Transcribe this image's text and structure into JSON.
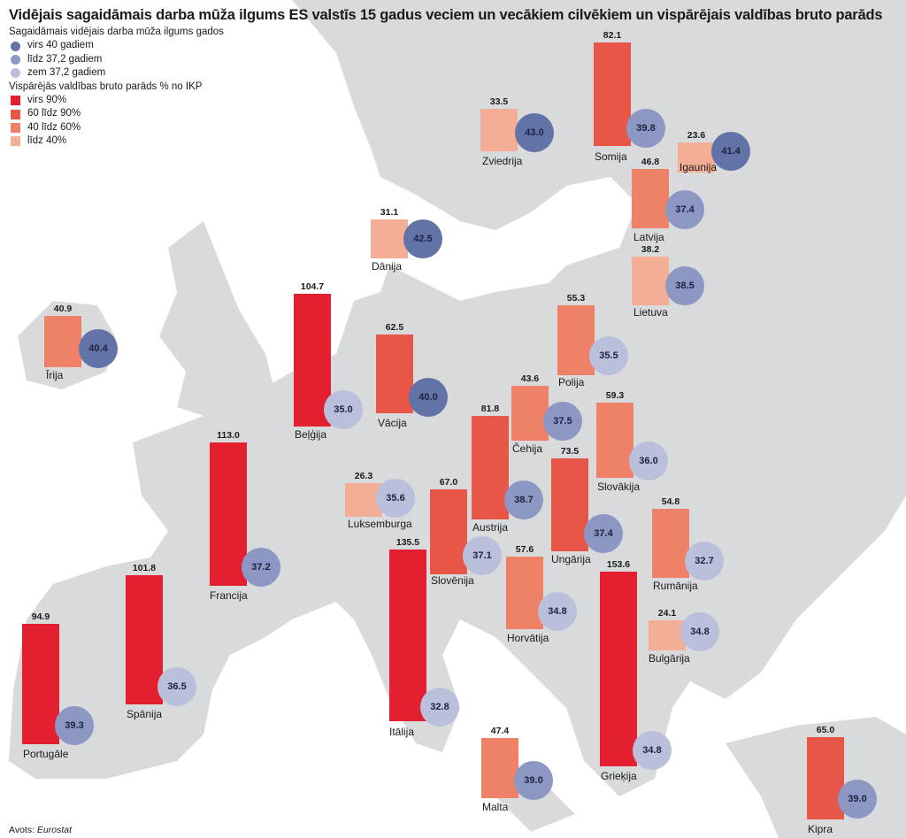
{
  "title": "Vidējais sagaidāmais darba mūža ilgums ES valstīs 15 gadus veciem un vecākiem cilvēkiem un vispārējais valdības bruto parāds",
  "legend": {
    "age_heading": "Sagaidāmais vidējais darba mūža ilgums gados",
    "age_items": [
      {
        "label": "virs 40 gadiem",
        "color": "#6273a8"
      },
      {
        "label": "līdz 37,2 gadiem",
        "color": "#8c97c4"
      },
      {
        "label": "zem 37,2 gadiem",
        "color": "#bac0dc"
      }
    ],
    "debt_heading": "Vispārējās valdības bruto parāds % no IKP",
    "debt_items": [
      {
        "label": "virs 90%",
        "color": "#e41f30"
      },
      {
        "label": "60 līdz 90%",
        "color": "#e75646"
      },
      {
        "label": "40 līdz 60%",
        "color": "#ef8169"
      },
      {
        "label": "līdz 40%",
        "color": "#f5ae96"
      }
    ]
  },
  "colors": {
    "land": "#d8dadc",
    "sea": "#ffffff"
  },
  "countries": [
    {
      "name": "Zviedrija",
      "debt": "33.5",
      "age": "43.0"
    },
    {
      "name": "Somija",
      "debt": "82.1",
      "age": "39.8"
    },
    {
      "name": "Igaunija",
      "debt": "23.6",
      "age": "41.4"
    },
    {
      "name": "Latvija",
      "debt": "46.8",
      "age": "37.4"
    },
    {
      "name": "Dānija",
      "debt": "31.1",
      "age": "42.5"
    },
    {
      "name": "Lietuva",
      "debt": "38.2",
      "age": "38.5"
    },
    {
      "name": "Īrija",
      "debt": "40.9",
      "age": "40.4"
    },
    {
      "name": "Beļģija",
      "debt": "104.7",
      "age": "35.0"
    },
    {
      "name": "Vācija",
      "debt": "62.5",
      "age": "40.0"
    },
    {
      "name": "Polija",
      "debt": "55.3",
      "age": "35.5"
    },
    {
      "name": "Čehija",
      "debt": "43.6",
      "age": "37.5"
    },
    {
      "name": "Slovākija",
      "debt": "59.3",
      "age": "36.0"
    },
    {
      "name": "Austrija",
      "debt": "81.8",
      "age": "38.7"
    },
    {
      "name": "Luksemburga",
      "debt": "26.3",
      "age": "35.6"
    },
    {
      "name": "Ungārija",
      "debt": "73.5",
      "age": "37.4"
    },
    {
      "name": "Slovēnija",
      "debt": "67.0",
      "age": "37.1"
    },
    {
      "name": "Rumānija",
      "debt": "54.8",
      "age": "32.7"
    },
    {
      "name": "Francija",
      "debt": "113.0",
      "age": "37.2"
    },
    {
      "name": "Horvātija",
      "debt": "57.6",
      "age": "34.8"
    },
    {
      "name": "Itālija",
      "debt": "135.5",
      "age": "32.8"
    },
    {
      "name": "Spānija",
      "debt": "101.8",
      "age": "36.5"
    },
    {
      "name": "Grieķija",
      "debt": "153.6",
      "age": "34.8"
    },
    {
      "name": "Bulgārija",
      "debt": "24.1",
      "age": "34.8"
    },
    {
      "name": "Portugāle",
      "debt": "94.9",
      "age": "39.3"
    },
    {
      "name": "Malta",
      "debt": "47.4",
      "age": "39.0"
    },
    {
      "name": "Kipra",
      "debt": "65.0",
      "age": "39.0"
    }
  ],
  "source": {
    "prefix": "Avots: ",
    "name": "Eurostat"
  }
}
